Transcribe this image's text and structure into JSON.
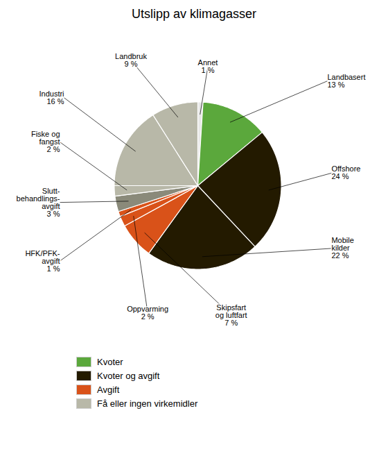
{
  "chart_data": {
    "type": "pie",
    "title": "Utslipp av klimagasser",
    "categories": [
      "Annet\n1 %",
      "Landbasert\n13 %",
      "Offshore\n24 %",
      "Mobile\nkilder\n22 %",
      "Skipsfart\nog luftfart\n7 %",
      "Oppvarming\n2 %",
      "HFK/PFK-\navgift\n1 %",
      "Slutt-\nbehandlings-\navgift\n3 %",
      "Fiske og\nfangst\n2 %",
      "Industri\n16 %",
      "Landbruk\n9 %"
    ],
    "values": [
      1,
      13,
      24,
      22,
      7,
      2,
      1,
      3,
      2,
      16,
      9
    ],
    "colors": [
      "#e8e8e8",
      "#5ba83c",
      "#231a00",
      "#231a00",
      "#d95219",
      "#d95219",
      "#d95219",
      "#8a8a7a",
      "#b8b8a8",
      "#b8b8a8",
      "#b8b8a8"
    ],
    "series": [
      {
        "name": "Kvoter",
        "color": "#5ba83c"
      },
      {
        "name": "Kvoter og avgift",
        "color": "#231a00"
      },
      {
        "name": "Avgift",
        "color": "#d95219"
      },
      {
        "name": "Få eller ingen virkemidler",
        "color": "#b8b8a8"
      }
    ],
    "legend": "bottom"
  }
}
